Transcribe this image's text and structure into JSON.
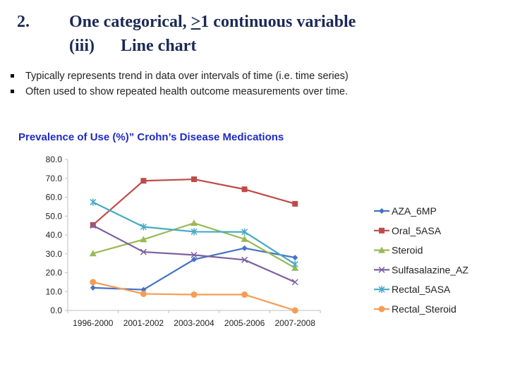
{
  "slide": {
    "heading_number": "2.",
    "heading_pre": "One categorical, ",
    "heading_ge": ">",
    "heading_post": "1 continuous variable",
    "sub_number": "(iii)",
    "sub_title": "Line chart",
    "bullets": [
      "Typically represents trend in data over intervals of time (i.e. time series)",
      "Often used to show repeated health outcome measurements over time."
    ]
  },
  "chart_data": {
    "type": "line",
    "title": "Prevalence of Use (%)” Crohn’s Disease Medications",
    "xlabel": "",
    "ylabel": "",
    "categories": [
      "1996-2000",
      "2001-2002",
      "2003-2004",
      "2005-2006",
      "2007-2008"
    ],
    "ylim": [
      0,
      80
    ],
    "yticks": [
      "0.0",
      "10.0",
      "20.0",
      "30.0",
      "40.0",
      "50.0",
      "60.0",
      "70.0",
      "80.0"
    ],
    "grid": false,
    "legend": "right",
    "series": [
      {
        "name": "AZA_6MP",
        "color": "#4472c4",
        "marker": "diamond",
        "values": [
          12.0,
          11.0,
          27.0,
          33.0,
          28.0
        ]
      },
      {
        "name": "Oral_5ASA",
        "color": "#be4b48",
        "marker": "square",
        "values": [
          45.3,
          68.7,
          69.5,
          64.2,
          56.5
        ]
      },
      {
        "name": "Steroid",
        "color": "#98b954",
        "marker": "triangle",
        "values": [
          30.2,
          37.6,
          46.3,
          37.8,
          22.5
        ]
      },
      {
        "name": "Sulfasalazine_AZ",
        "color": "#7d60a0",
        "marker": "x",
        "values": [
          45.0,
          31.0,
          29.4,
          26.8,
          15.0
        ]
      },
      {
        "name": "Rectal_5ASA",
        "color": "#46aac5",
        "marker": "star",
        "values": [
          57.4,
          44.3,
          41.7,
          41.6,
          24.5
        ]
      },
      {
        "name": "Rectal_Steroid",
        "color": "#f59d56",
        "marker": "circle",
        "values": [
          15.0,
          8.8,
          8.4,
          8.4,
          0.0
        ]
      }
    ]
  }
}
